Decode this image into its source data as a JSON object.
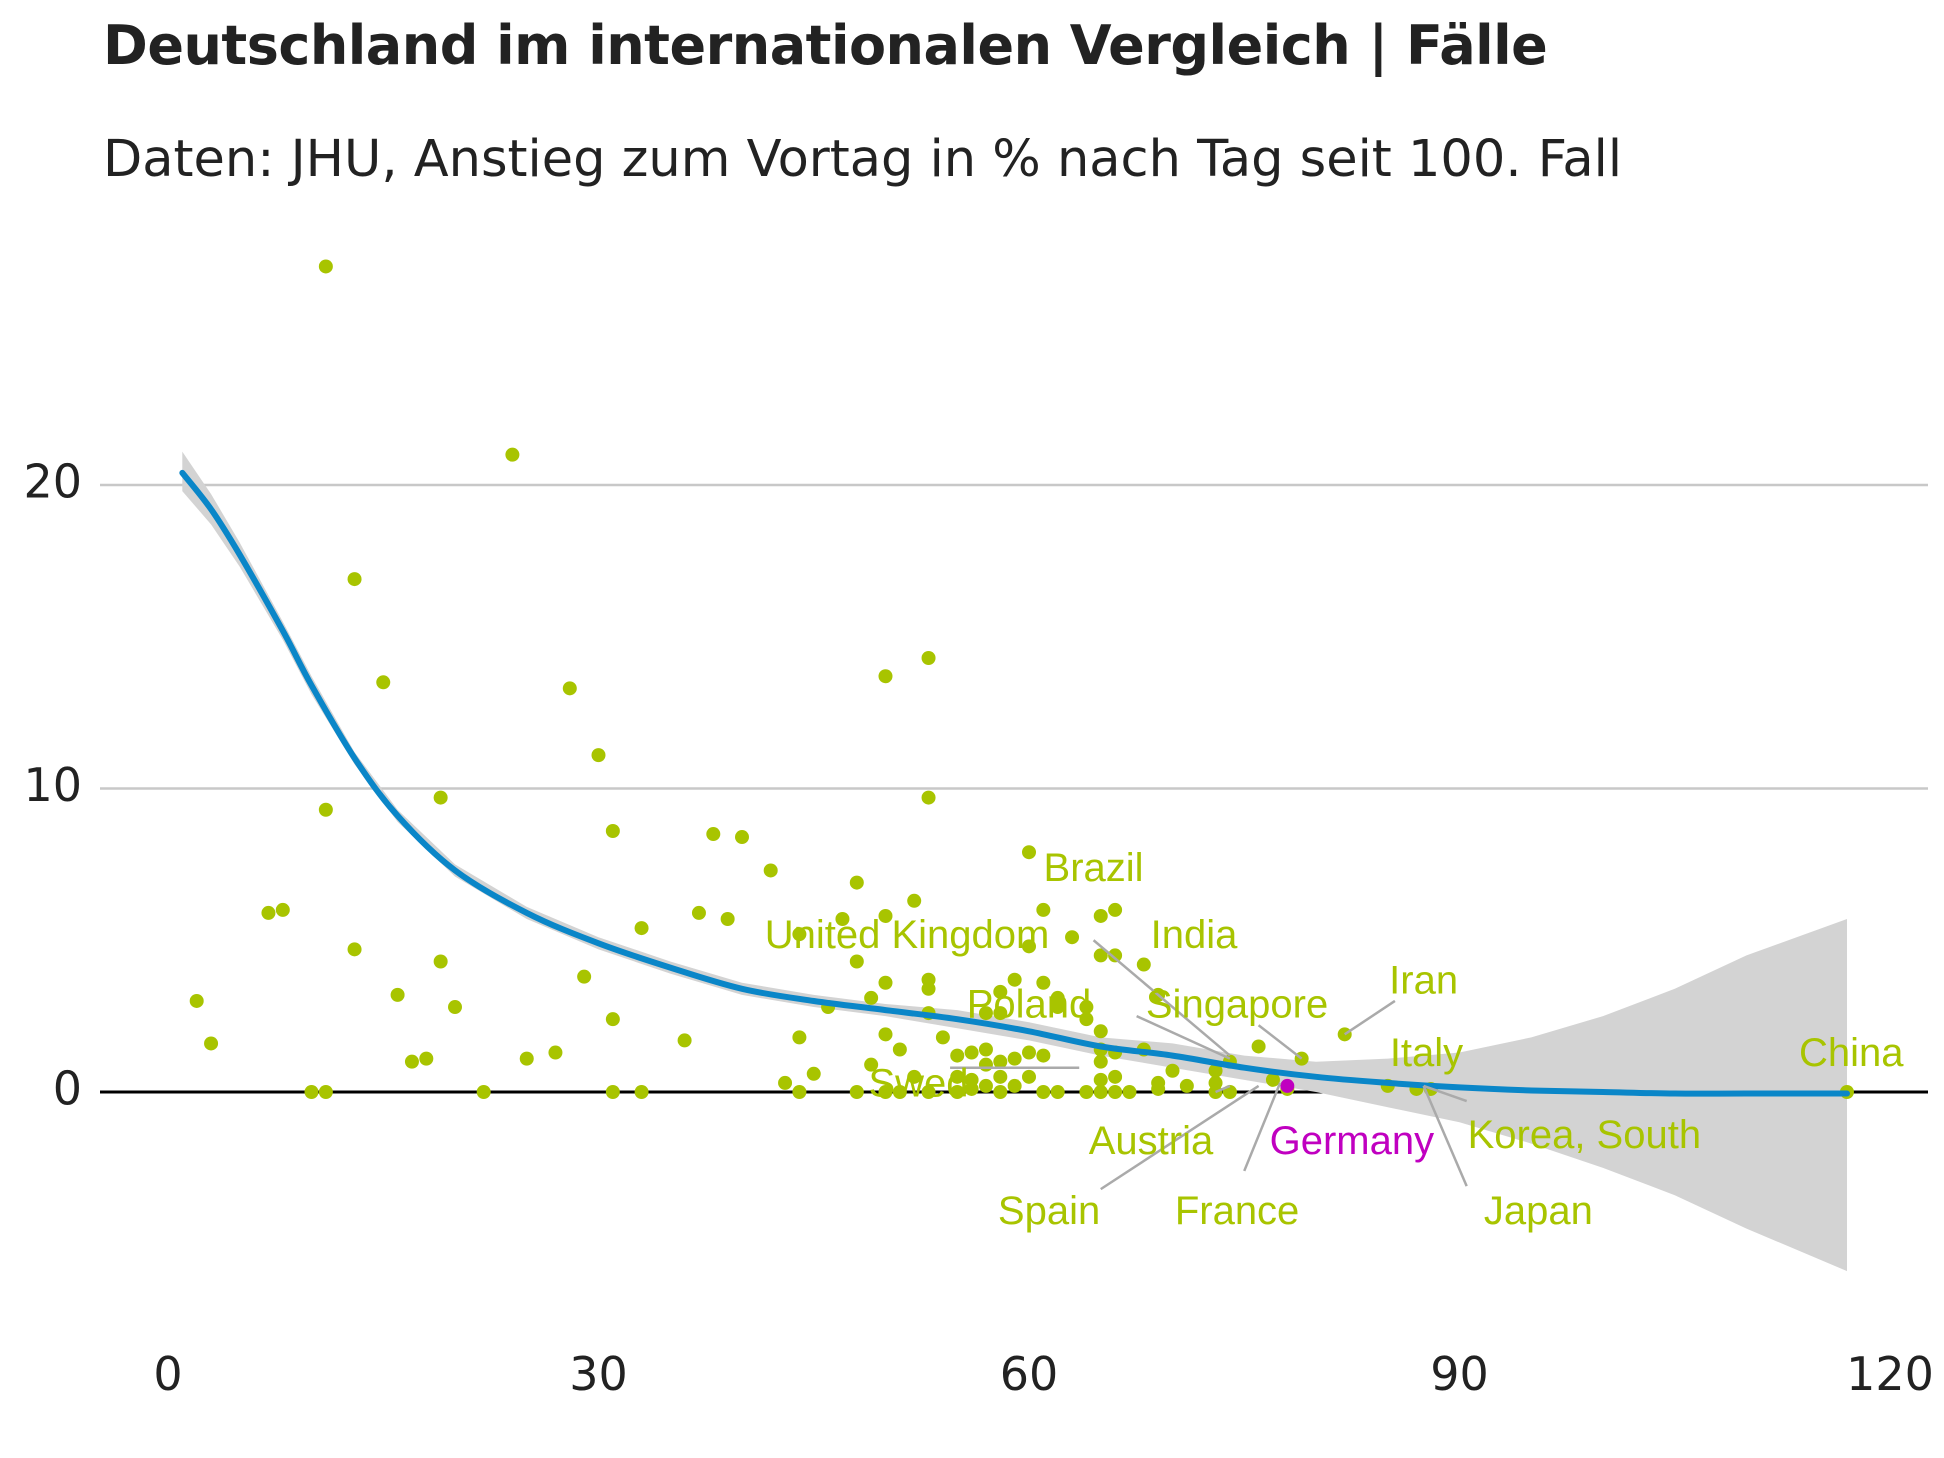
{
  "title": "Deutschland im internationalen Vergleich | Fälle",
  "subtitle": "Daten: JHU, Anstieg zum Vortag in % nach Tag seit 100. Fall",
  "colors": {
    "points": "#a8c400",
    "highlight": "#c000c0",
    "trend": "#0a86c8",
    "band": "#d3d3d3",
    "grid": "#c8c8c8",
    "zero_line": "#000000",
    "leader": "#aaaaaa"
  },
  "chart_data": {
    "type": "scatter",
    "title": "Deutschland im internationalen Vergleich | Fälle",
    "subtitle": "Daten: JHU, Anstieg zum Vortag in % nach Tag seit 100. Fall",
    "xlabel": "",
    "ylabel": "",
    "xlim": [
      -2,
      122
    ],
    "ylim": [
      -8,
      28
    ],
    "x_ticks": [
      0,
      30,
      60,
      90,
      120
    ],
    "y_ticks": [
      0,
      10,
      20
    ],
    "grid": "horizontal major lines",
    "legend": "none",
    "points": [
      [
        2,
        3
      ],
      [
        3,
        1.6
      ],
      [
        7,
        5.9
      ],
      [
        8,
        6
      ],
      [
        10,
        0
      ],
      [
        11,
        0
      ],
      [
        11,
        27.2
      ],
      [
        11,
        9.3
      ],
      [
        13,
        4.7
      ],
      [
        13,
        16.9
      ],
      [
        15,
        13.5
      ],
      [
        16,
        3.2
      ],
      [
        17,
        1
      ],
      [
        18,
        1.1
      ],
      [
        19,
        9.7
      ],
      [
        19,
        4.3
      ],
      [
        20,
        2.8
      ],
      [
        22,
        0
      ],
      [
        24,
        21
      ],
      [
        25,
        1.1
      ],
      [
        27,
        1.3
      ],
      [
        28,
        13.3
      ],
      [
        29,
        3.8
      ],
      [
        30,
        11.1
      ],
      [
        31,
        8.6
      ],
      [
        31,
        2.4
      ],
      [
        31,
        0
      ],
      [
        33,
        5.4
      ],
      [
        33,
        0
      ],
      [
        36,
        1.7
      ],
      [
        37,
        5.9
      ],
      [
        38,
        8.5
      ],
      [
        39,
        5.7
      ],
      [
        40,
        8.4
      ],
      [
        42,
        7.3
      ],
      [
        43,
        0.3
      ],
      [
        44,
        5.2
      ],
      [
        44,
        1.8
      ],
      [
        44,
        0
      ],
      [
        45,
        0.6
      ],
      [
        46,
        2.8
      ],
      [
        47,
        5.7
      ],
      [
        48,
        6.9
      ],
      [
        48,
        4.3
      ],
      [
        48,
        0
      ],
      [
        49,
        3.1
      ],
      [
        49,
        0.9
      ],
      [
        50,
        13.7
      ],
      [
        50,
        5.8
      ],
      [
        50,
        3.6
      ],
      [
        50,
        1.9
      ],
      [
        50,
        0
      ],
      [
        51,
        1.4
      ],
      [
        51,
        0
      ],
      [
        52,
        6.3
      ],
      [
        52,
        0.5
      ],
      [
        53,
        14.3
      ],
      [
        53,
        9.7
      ],
      [
        53,
        3.7
      ],
      [
        53,
        3.4
      ],
      [
        53,
        2.6
      ],
      [
        53,
        0
      ],
      [
        54,
        1.8
      ],
      [
        55,
        1.2
      ],
      [
        55,
        0.5
      ],
      [
        55,
        0
      ],
      [
        56,
        1.3
      ],
      [
        56,
        0.4
      ],
      [
        56,
        0.1
      ],
      [
        57,
        2.6
      ],
      [
        57,
        1.4
      ],
      [
        57,
        0.9
      ],
      [
        57,
        0.2
      ],
      [
        58,
        3.3
      ],
      [
        58,
        2.6
      ],
      [
        58,
        1
      ],
      [
        58,
        0.5
      ],
      [
        58,
        0
      ],
      [
        59,
        3.7
      ],
      [
        59,
        1.1
      ],
      [
        59,
        0.2
      ],
      [
        60,
        7.9
      ],
      [
        60,
        4.8
      ],
      [
        60,
        1.3
      ],
      [
        60,
        0.5
      ],
      [
        61,
        6
      ],
      [
        61,
        3.6
      ],
      [
        61,
        1.2
      ],
      [
        61,
        0
      ],
      [
        62,
        3.1
      ],
      [
        62,
        2.8
      ],
      [
        62,
        0
      ],
      [
        63,
        5.1
      ],
      [
        64,
        2.8
      ],
      [
        64,
        2.4
      ],
      [
        64,
        0
      ],
      [
        65,
        5.8
      ],
      [
        65,
        4.5
      ],
      [
        65,
        2
      ],
      [
        65,
        1.4
      ],
      [
        65,
        1
      ],
      [
        65,
        0.4
      ],
      [
        65,
        0
      ],
      [
        66,
        6
      ],
      [
        66,
        4.5
      ],
      [
        66,
        1.3
      ],
      [
        66,
        0.5
      ],
      [
        66,
        0
      ],
      [
        67,
        0
      ],
      [
        68,
        4.2
      ],
      [
        68,
        1.4
      ],
      [
        69,
        3.2
      ],
      [
        69,
        0.3
      ],
      [
        69,
        0.1
      ],
      [
        70,
        0.7
      ],
      [
        71,
        0.2
      ],
      [
        73,
        0.7
      ],
      [
        73,
        0.3
      ],
      [
        73,
        0
      ],
      [
        74,
        1
      ],
      [
        74,
        0
      ],
      [
        76,
        1.5
      ],
      [
        77,
        0.4
      ],
      [
        78,
        0.1
      ],
      [
        79,
        1.1
      ],
      [
        82,
        1.9
      ],
      [
        85,
        0.2
      ],
      [
        87,
        0.1
      ],
      [
        88,
        0.1
      ],
      [
        117,
        0
      ]
    ],
    "highlight_point": {
      "name": "Germany",
      "x": 78,
      "y": 0.2
    },
    "trend": {
      "x": [
        1,
        3,
        5,
        8,
        10,
        13,
        16,
        20,
        25,
        30,
        35,
        40,
        45,
        50,
        55,
        60,
        65,
        70,
        75,
        80,
        85,
        90,
        95,
        100,
        105,
        110,
        117
      ],
      "y": [
        20.4,
        19.2,
        17.7,
        15.2,
        13.4,
        11,
        9.1,
        7.3,
        5.9,
        4.9,
        4.1,
        3.4,
        3,
        2.7,
        2.4,
        2,
        1.5,
        1.2,
        0.8,
        0.5,
        0.3,
        0.15,
        0.05,
        0,
        -0.05,
        -0.05,
        -0.05
      ],
      "lower": [
        19.8,
        18.7,
        17.3,
        14.9,
        13.1,
        10.8,
        8.9,
        7.1,
        5.7,
        4.7,
        3.9,
        3.2,
        2.8,
        2.5,
        2.1,
        1.7,
        1.2,
        0.8,
        0.4,
        0,
        -0.5,
        -1,
        -1.7,
        -2.5,
        -3.4,
        -4.5,
        -5.9
      ],
      "upper": [
        21.1,
        19.7,
        18.1,
        15.5,
        13.7,
        11.2,
        9.3,
        7.5,
        6.1,
        5.1,
        4.3,
        3.6,
        3.2,
        2.9,
        2.7,
        2.3,
        1.8,
        1.6,
        1.2,
        1,
        1.1,
        1.3,
        1.8,
        2.5,
        3.4,
        4.5,
        5.7
      ]
    },
    "labels": [
      {
        "text": "Brazil",
        "x": 64.5,
        "y": 7.3,
        "anchor": "middle",
        "color": "points"
      },
      {
        "text": "United Kingdom",
        "x": 51.5,
        "y": 5.1,
        "anchor": "middle",
        "color": "points"
      },
      {
        "text": "India",
        "x": 71.5,
        "y": 5.1,
        "anchor": "middle",
        "color": "points"
      },
      {
        "text": "Iran",
        "x": 87.5,
        "y": 3.6,
        "anchor": "middle",
        "color": "points"
      },
      {
        "text": "Poland",
        "x": 60,
        "y": 2.8,
        "anchor": "middle",
        "color": "points"
      },
      {
        "text": "Singapore",
        "x": 74.5,
        "y": 2.8,
        "anchor": "middle",
        "color": "points"
      },
      {
        "text": "Italy",
        "x": 87.7,
        "y": 1.2,
        "anchor": "middle",
        "color": "points"
      },
      {
        "text": "China",
        "x": 117.3,
        "y": 1.2,
        "anchor": "middle",
        "color": "points"
      },
      {
        "text": "Swed",
        "x": 52.3,
        "y": 0.2,
        "anchor": "middle",
        "color": "points"
      },
      {
        "text": "Austria",
        "x": 68.5,
        "y": -1.7,
        "anchor": "middle",
        "color": "points"
      },
      {
        "text": "Germany",
        "x": 82.5,
        "y": -1.7,
        "anchor": "middle",
        "color": "highlight"
      },
      {
        "text": "Korea, South",
        "x": 98.7,
        "y": -1.5,
        "anchor": "middle",
        "color": "points"
      },
      {
        "text": "Spain",
        "x": 61.4,
        "y": -4,
        "anchor": "middle",
        "color": "points"
      },
      {
        "text": "France",
        "x": 74.5,
        "y": -4,
        "anchor": "middle",
        "color": "points"
      },
      {
        "text": "Japan",
        "x": 95.5,
        "y": -4,
        "anchor": "middle",
        "color": "points"
      }
    ],
    "leaders": [
      [
        64.5,
        5,
        74,
        1.2
      ],
      [
        54.5,
        0.8,
        63.5,
        0.8
      ],
      [
        67.5,
        2.5,
        74,
        1.1
      ],
      [
        76,
        2.2,
        79,
        1.1
      ],
      [
        82,
        1.9,
        85.5,
        3
      ],
      [
        87.5,
        0.2,
        90.5,
        -0.3
      ],
      [
        87.5,
        0.2,
        90.5,
        -3.1
      ],
      [
        73,
        0,
        74,
        0.2
      ],
      [
        65,
        -3.2,
        76,
        0.2
      ],
      [
        75,
        -2.6,
        77.5,
        0.3
      ]
    ]
  }
}
